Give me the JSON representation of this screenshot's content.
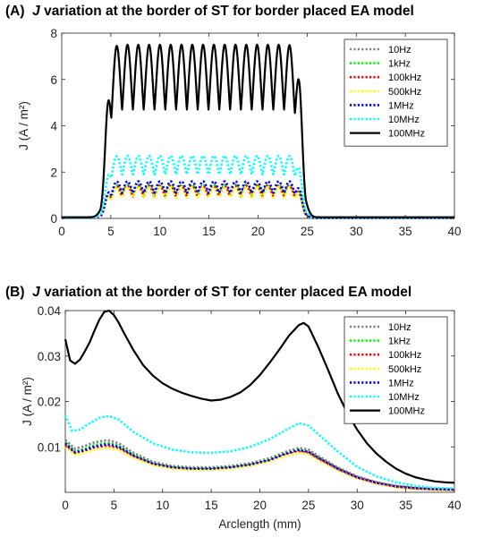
{
  "chart_data": [
    {
      "type": "line",
      "panel_label": "(A)",
      "title_italic": "J",
      "title_rest": " variation at the border of ST for border placed EA model",
      "ylabel": "J (A / m²)",
      "xlabel": "",
      "xlim": [
        0,
        40
      ],
      "ylim": [
        0,
        8
      ],
      "xticks": [
        0,
        5,
        10,
        15,
        20,
        25,
        30,
        35,
        40
      ],
      "yticks": [
        0,
        2,
        4,
        6,
        8
      ],
      "grid": false,
      "legend_position": "top-right",
      "plateau_start": 4.5,
      "plateau_end": 24.5,
      "oscillation_period": 1.1,
      "series": [
        {
          "name": "10Hz",
          "color": "#808080",
          "style": "dotted",
          "baseline": 0.02,
          "low": 1.0,
          "high": 1.45
        },
        {
          "name": "1kHz",
          "color": "#00ff00",
          "style": "dotted",
          "baseline": 0.02,
          "low": 1.0,
          "high": 1.45
        },
        {
          "name": "100kHz",
          "color": "#ff0000",
          "style": "dotted",
          "baseline": 0.02,
          "low": 0.95,
          "high": 1.4
        },
        {
          "name": "500kHz",
          "color": "#ffff00",
          "style": "dotted",
          "baseline": 0.02,
          "low": 0.9,
          "high": 1.35
        },
        {
          "name": "1MHz",
          "color": "#0000ff",
          "style": "dotted",
          "baseline": 0.02,
          "low": 1.1,
          "high": 1.6
        },
        {
          "name": "10MHz",
          "color": "#00ffff",
          "style": "dotted",
          "baseline": 0.03,
          "low": 1.9,
          "high": 2.7
        },
        {
          "name": "100MHz",
          "color": "#000000",
          "style": "solid",
          "baseline": 0.05,
          "low": 4.7,
          "high": 7.5
        }
      ]
    },
    {
      "type": "line",
      "panel_label": "(B)",
      "title_italic": "J",
      "title_rest": " variation at the border of ST for center placed EA model",
      "ylabel": "J (A / m²)",
      "xlabel": "Arclength (mm)",
      "xlim": [
        0,
        40
      ],
      "ylim": [
        0,
        0.04
      ],
      "xticks": [
        0,
        5,
        10,
        15,
        20,
        25,
        30,
        35,
        40
      ],
      "yticks": [
        0.01,
        0.02,
        0.03,
        0.04
      ],
      "grid": false,
      "legend_position": "top-right",
      "series": [
        {
          "name": "10Hz",
          "color": "#808080",
          "style": "dotted",
          "x": [
            0,
            1,
            2,
            3,
            4.3,
            5.5,
            7,
            9,
            11,
            13,
            15,
            17,
            19,
            21,
            22.5,
            24,
            25,
            26,
            28,
            30,
            32,
            34,
            36,
            38,
            40
          ],
          "y": [
            0.0115,
            0.0096,
            0.0102,
            0.011,
            0.0115,
            0.0108,
            0.0087,
            0.0067,
            0.0058,
            0.0055,
            0.0055,
            0.0058,
            0.0064,
            0.0075,
            0.0088,
            0.0098,
            0.0094,
            0.008,
            0.0055,
            0.0035,
            0.0022,
            0.0014,
            0.001,
            0.0008,
            0.0007
          ]
        },
        {
          "name": "1kHz",
          "color": "#00ff00",
          "style": "dotted",
          "x": [
            0,
            1,
            2,
            3,
            4.3,
            5.5,
            7,
            9,
            11,
            13,
            15,
            17,
            19,
            21,
            22.5,
            24,
            25,
            26,
            28,
            30,
            32,
            34,
            36,
            38,
            40
          ],
          "y": [
            0.011,
            0.009,
            0.0096,
            0.0104,
            0.0109,
            0.0103,
            0.0083,
            0.0064,
            0.0056,
            0.0053,
            0.0053,
            0.0056,
            0.0062,
            0.0072,
            0.0085,
            0.0094,
            0.009,
            0.0077,
            0.0053,
            0.0033,
            0.0021,
            0.0013,
            0.0009,
            0.0007,
            0.0006
          ]
        },
        {
          "name": "100kHz",
          "color": "#ff0000",
          "style": "dotted",
          "x": [
            0,
            1,
            2,
            3,
            4.3,
            5.5,
            7,
            9,
            11,
            13,
            15,
            17,
            19,
            21,
            22.5,
            24,
            25,
            26,
            28,
            30,
            32,
            34,
            36,
            38,
            40
          ],
          "y": [
            0.0104,
            0.0086,
            0.0091,
            0.0098,
            0.0102,
            0.0097,
            0.0079,
            0.0062,
            0.0054,
            0.0051,
            0.0051,
            0.0054,
            0.006,
            0.007,
            0.0082,
            0.009,
            0.0087,
            0.0074,
            0.0051,
            0.0032,
            0.002,
            0.0012,
            0.0008,
            0.0006,
            0.0005
          ]
        },
        {
          "name": "500kHz",
          "color": "#ffff00",
          "style": "dotted",
          "x": [
            0,
            1,
            2,
            3,
            4.3,
            5.5,
            7,
            9,
            11,
            13,
            15,
            17,
            19,
            21,
            22.5,
            24,
            25,
            26,
            28,
            30,
            32,
            34,
            36,
            38,
            40
          ],
          "y": [
            0.01,
            0.0082,
            0.0087,
            0.0094,
            0.0098,
            0.0093,
            0.0076,
            0.006,
            0.0052,
            0.0049,
            0.0049,
            0.0052,
            0.0058,
            0.0068,
            0.0079,
            0.0087,
            0.0084,
            0.0071,
            0.0049,
            0.0031,
            0.0019,
            0.0011,
            0.0007,
            0.0005,
            0.0004
          ]
        },
        {
          "name": "1MHz",
          "color": "#0000ff",
          "style": "dotted",
          "x": [
            0,
            1,
            2,
            3,
            4.3,
            5.5,
            7,
            9,
            11,
            13,
            15,
            17,
            19,
            21,
            22.5,
            24,
            25,
            26,
            28,
            30,
            32,
            34,
            36,
            38,
            40
          ],
          "y": [
            0.0108,
            0.0088,
            0.0093,
            0.0101,
            0.0106,
            0.01,
            0.0081,
            0.0063,
            0.0055,
            0.0052,
            0.0052,
            0.0055,
            0.0061,
            0.0071,
            0.0084,
            0.0093,
            0.0089,
            0.0076,
            0.0052,
            0.0033,
            0.0021,
            0.0013,
            0.0009,
            0.0007,
            0.0006
          ]
        },
        {
          "name": "10MHz",
          "color": "#00ffff",
          "style": "dotted",
          "x": [
            0,
            0.7,
            1.5,
            2.5,
            3.5,
            4.5,
            5.5,
            7,
            9,
            11,
            13,
            15,
            17,
            19,
            21,
            22.5,
            24,
            25,
            26,
            28,
            30,
            32,
            34,
            36,
            38,
            40
          ],
          "y": [
            0.017,
            0.0135,
            0.0138,
            0.0152,
            0.0164,
            0.0168,
            0.016,
            0.0133,
            0.0108,
            0.0094,
            0.0088,
            0.0087,
            0.009,
            0.01,
            0.0117,
            0.0135,
            0.0152,
            0.0147,
            0.0128,
            0.009,
            0.0056,
            0.0035,
            0.0022,
            0.0014,
            0.001,
            0.0008
          ]
        },
        {
          "name": "100MHz",
          "color": "#000000",
          "style": "solid",
          "x": [
            0,
            0.5,
            1,
            1.5,
            2,
            2.5,
            3,
            3.5,
            4,
            4.5,
            5,
            5.5,
            6,
            7,
            8,
            9,
            10,
            11,
            12,
            13,
            14,
            15,
            16,
            17,
            18,
            19,
            20,
            21,
            22,
            23,
            24,
            24.5,
            25,
            26,
            27,
            28,
            29,
            30,
            31,
            32,
            33,
            34,
            35,
            36,
            37,
            38,
            39,
            40
          ],
          "y": [
            0.0337,
            0.029,
            0.0283,
            0.0292,
            0.031,
            0.033,
            0.0356,
            0.038,
            0.0397,
            0.04,
            0.039,
            0.0373,
            0.0352,
            0.0313,
            0.028,
            0.0257,
            0.024,
            0.0228,
            0.0219,
            0.0212,
            0.0206,
            0.0202,
            0.0204,
            0.021,
            0.022,
            0.0236,
            0.0258,
            0.0285,
            0.0314,
            0.0345,
            0.0368,
            0.0373,
            0.0365,
            0.032,
            0.027,
            0.0218,
            0.0174,
            0.0138,
            0.0108,
            0.0085,
            0.0067,
            0.0052,
            0.0041,
            0.0033,
            0.0028,
            0.0024,
            0.0022,
            0.0021
          ]
        }
      ]
    }
  ]
}
